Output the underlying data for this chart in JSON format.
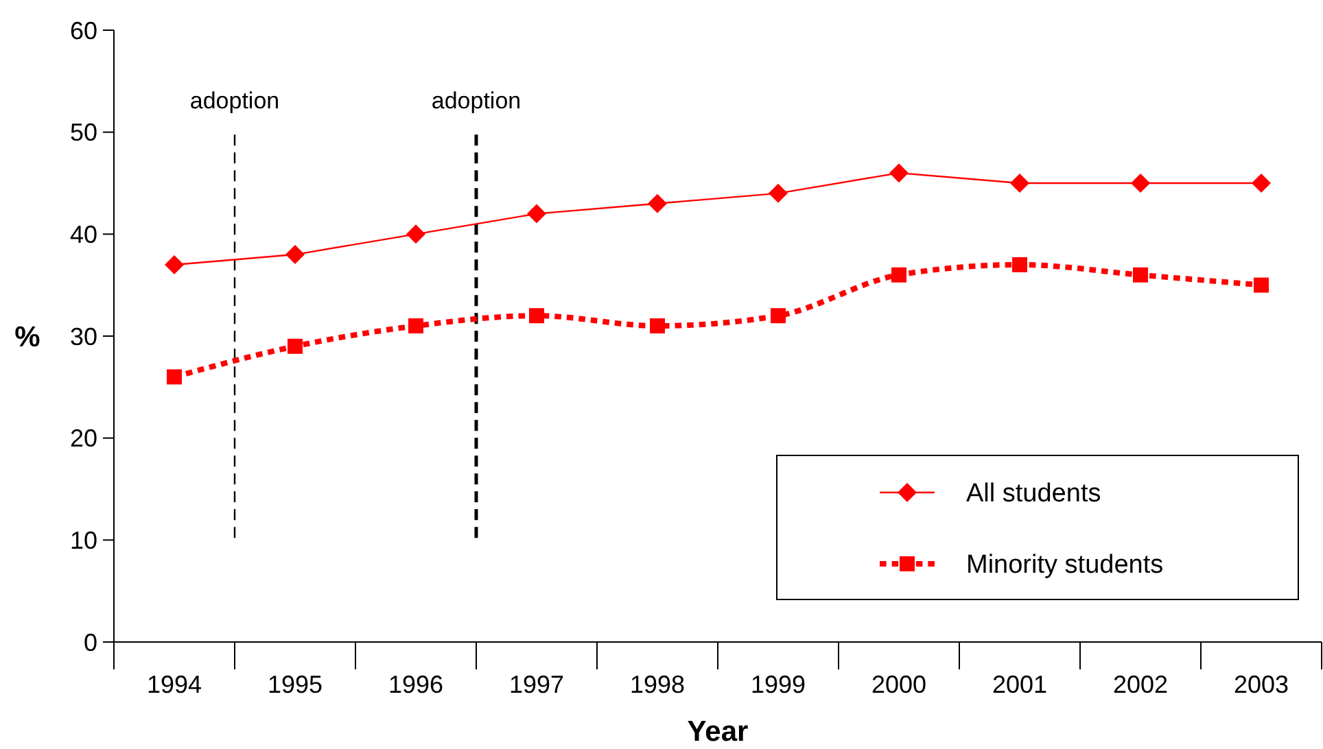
{
  "chart_data": {
    "type": "line",
    "xlabel": "Year",
    "ylabel": "%",
    "x": [
      1994,
      1995,
      1996,
      1997,
      1998,
      1999,
      2000,
      2001,
      2002,
      2003
    ],
    "series": [
      {
        "name": "All students",
        "color": "#ff0000",
        "values": [
          37,
          38,
          40,
          42,
          43,
          44,
          46,
          45,
          45,
          45
        ],
        "marker": "diamond",
        "line_style": "solid"
      },
      {
        "name": "Minority students",
        "color": "#ff0000",
        "values": [
          26,
          29,
          31,
          32,
          31,
          32,
          36,
          37,
          36,
          35
        ],
        "marker": "square",
        "line_style": "dotted"
      }
    ],
    "xlim": [
      1993.5,
      2003.5
    ],
    "xticks": [
      1994,
      1995,
      1996,
      1997,
      1998,
      1999,
      2000,
      2001,
      2002,
      2003
    ],
    "ylim": [
      0,
      60
    ],
    "yticks": [
      0,
      10,
      20,
      30,
      40,
      50,
      60
    ],
    "ref_lines": [
      {
        "axis": "x",
        "value": 1994.5,
        "label": "adoption",
        "line_style": "dashed"
      },
      {
        "axis": "x",
        "value": 1996.5,
        "label": "adoption",
        "line_style": "dashed"
      }
    ],
    "grid": false,
    "legend": "bottom right"
  }
}
